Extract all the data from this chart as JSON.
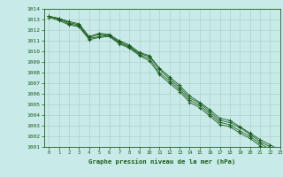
{
  "x": [
    0,
    1,
    2,
    3,
    4,
    5,
    6,
    7,
    8,
    9,
    10,
    11,
    12,
    13,
    14,
    15,
    16,
    17,
    18,
    19,
    20,
    21,
    22,
    23
  ],
  "series": [
    [
      1013.3,
      1013.1,
      1012.7,
      1012.5,
      1011.2,
      1011.4,
      1011.5,
      1010.9,
      1010.5,
      1009.8,
      1009.5,
      1008.3,
      1007.4,
      1006.6,
      1005.6,
      1005.1,
      1004.3,
      1003.5,
      1003.3,
      1002.8,
      1002.2,
      1001.5,
      1001.0,
      1000.6
    ],
    [
      1013.3,
      1013.0,
      1012.6,
      1012.4,
      1011.3,
      1011.6,
      1011.5,
      1010.8,
      1010.4,
      1009.7,
      1009.3,
      1008.0,
      1007.2,
      1006.4,
      1005.4,
      1004.9,
      1004.1,
      1003.3,
      1003.1,
      1002.5,
      1002.0,
      1001.3,
      1000.8,
      1000.5
    ],
    [
      1013.2,
      1012.9,
      1012.5,
      1012.3,
      1011.1,
      1011.3,
      1011.4,
      1010.7,
      1010.3,
      1009.6,
      1009.1,
      1007.8,
      1007.0,
      1006.2,
      1005.2,
      1004.7,
      1003.9,
      1003.1,
      1002.9,
      1002.3,
      1001.8,
      1001.1,
      1000.6,
      1000.3
    ],
    [
      1013.3,
      1013.1,
      1012.8,
      1012.6,
      1011.4,
      1011.7,
      1011.6,
      1011.0,
      1010.6,
      1009.9,
      1009.6,
      1008.4,
      1007.6,
      1006.8,
      1005.8,
      1005.2,
      1004.5,
      1003.7,
      1003.5,
      1002.9,
      1002.3,
      1001.7,
      1001.2,
      1000.7
    ]
  ],
  "line_color": "#1a5c1a",
  "marker_color": "#1a5c1a",
  "bg_color": "#c8eae8",
  "grid_color": "#a8ccc8",
  "text_color": "#1a5c1a",
  "xlabel": "Graphe pression niveau de la mer (hPa)",
  "ylim": [
    1001,
    1014
  ],
  "xlim": [
    -0.5,
    23
  ],
  "yticks": [
    1001,
    1002,
    1003,
    1004,
    1005,
    1006,
    1007,
    1008,
    1009,
    1010,
    1011,
    1012,
    1013,
    1014
  ],
  "xticks": [
    0,
    1,
    2,
    3,
    4,
    5,
    6,
    7,
    8,
    9,
    10,
    11,
    12,
    13,
    14,
    15,
    16,
    17,
    18,
    19,
    20,
    21,
    22,
    23
  ]
}
